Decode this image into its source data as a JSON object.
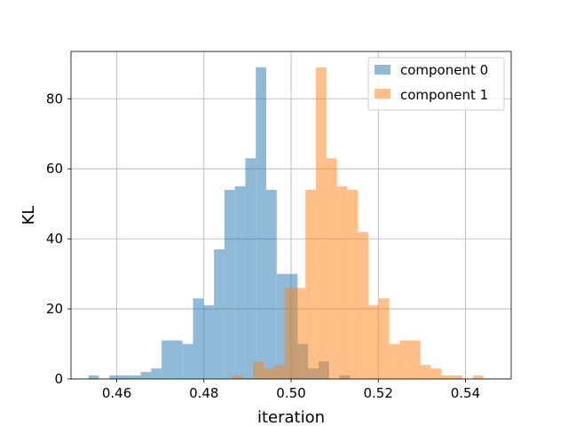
{
  "chart_data": {
    "type": "histogram",
    "xlabel": "iteration",
    "ylabel": "KL",
    "xlim": [
      0.4495,
      0.5505
    ],
    "ylim": [
      0,
      93.5
    ],
    "x_ticks": [
      0.46,
      0.48,
      0.5,
      0.52,
      0.54
    ],
    "x_tick_labels": [
      "0.46",
      "0.48",
      "0.50",
      "0.52",
      "0.54"
    ],
    "y_ticks": [
      0,
      20,
      40,
      60,
      80
    ],
    "y_tick_labels": [
      "0",
      "20",
      "40",
      "60",
      "80"
    ],
    "grid": true,
    "legend_position": "upper right",
    "alpha": 0.5,
    "series": [
      {
        "name": "component 0",
        "color": "#1f77b4",
        "bin_start": 0.4535,
        "bin_width": 0.0024,
        "counts": [
          1,
          0,
          1,
          1,
          1,
          2,
          3,
          11,
          11,
          10,
          23,
          21,
          37,
          54,
          55,
          63,
          89,
          54,
          30,
          30,
          10,
          3,
          5,
          0,
          1
        ]
      },
      {
        "name": "component 1",
        "color": "#ff7f0e",
        "bin_start": 0.4865,
        "bin_width": 0.0024,
        "counts": [
          1,
          0,
          5,
          3,
          4,
          26,
          26,
          54,
          89,
          63,
          55,
          54,
          42,
          21,
          23,
          10,
          11,
          11,
          4,
          3,
          1,
          1,
          0,
          1
        ]
      }
    ]
  }
}
